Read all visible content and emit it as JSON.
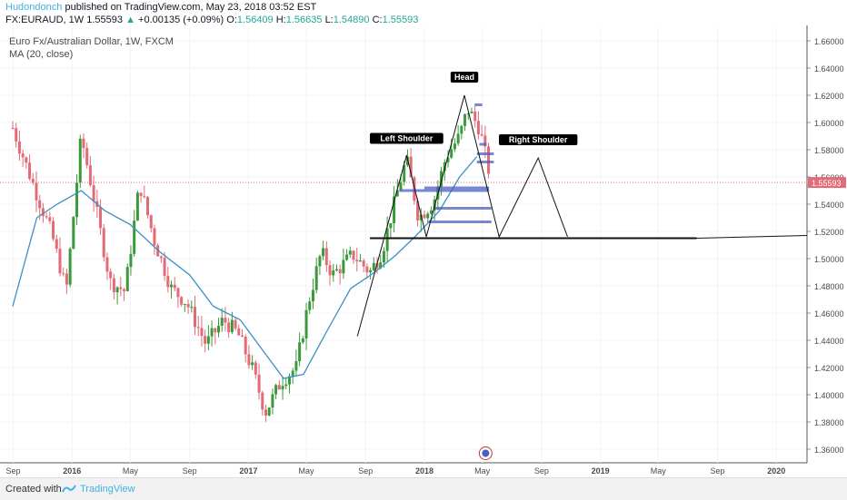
{
  "header": {
    "author": "Hudondonch",
    "published": "published on TradingView.com, May 23, 2018 03:52 EST",
    "symbol": "FX:EURAUD, 1W",
    "price": "1.55593",
    "change": "+0.00135 (+0.09%)",
    "o_label": "O:",
    "o_value": "1.56409",
    "h_label": "H:",
    "h_value": "1.56635",
    "l_label": "L:",
    "l_value": "1.54890",
    "c_label": "C:",
    "c_value": "1.55593"
  },
  "chart_title": "Euro Fx/Australian Dollar, 1W, FXCM",
  "ma_label": "MA (20, close)",
  "footer": {
    "created": "Created with",
    "brand": "TradingView"
  },
  "colors": {
    "up": "#26a69a",
    "bar_up": "#3a9a3a",
    "bar_down": "#e36b78",
    "ma": "#3b8fc4",
    "pattern": "#111111",
    "level": "#4a5fc1",
    "label_bg": "#000000",
    "price_line": "#e36b78"
  },
  "chart_data": {
    "type": "candlestick",
    "title": "Euro Fx/Australian Dollar, 1W, FXCM",
    "ylim": [
      1.35,
      1.67
    ],
    "yticks": [
      "1.66000",
      "1.64000",
      "1.62000",
      "1.60000",
      "1.58000",
      "1.56000",
      "1.54000",
      "1.52000",
      "1.50000",
      "1.48000",
      "1.46000",
      "1.44000",
      "1.42000",
      "1.40000",
      "1.38000",
      "1.36000"
    ],
    "xticks": [
      "Sep",
      "2016",
      "May",
      "Sep",
      "2017",
      "May",
      "Sep",
      "2018",
      "May",
      "Sep",
      "2019",
      "May",
      "Sep",
      "2020"
    ],
    "last_price": "1.55593",
    "close_path": [
      {
        "d": "2015-08-31",
        "c": 1.596
      },
      {
        "d": "2015-10-15",
        "c": 1.552
      },
      {
        "d": "2015-11-20",
        "c": 1.518
      },
      {
        "d": "2015-12-20",
        "c": 1.476
      },
      {
        "d": "2016-01-20",
        "c": 1.59
      },
      {
        "d": "2016-02-15",
        "c": 1.545
      },
      {
        "d": "2016-03-20",
        "c": 1.483
      },
      {
        "d": "2016-04-20",
        "c": 1.476
      },
      {
        "d": "2016-05-20",
        "c": 1.555
      },
      {
        "d": "2016-06-20",
        "c": 1.513
      },
      {
        "d": "2016-07-25",
        "c": 1.478
      },
      {
        "d": "2016-08-25",
        "c": 1.468
      },
      {
        "d": "2016-10-05",
        "c": 1.437
      },
      {
        "d": "2016-11-10",
        "c": 1.455
      },
      {
        "d": "2016-12-10",
        "c": 1.445
      },
      {
        "d": "2017-01-10",
        "c": 1.418
      },
      {
        "d": "2017-02-05",
        "c": 1.387
      },
      {
        "d": "2017-03-10",
        "c": 1.41
      },
      {
        "d": "2017-04-10",
        "c": 1.42
      },
      {
        "d": "2017-05-05",
        "c": 1.467
      },
      {
        "d": "2017-06-01",
        "c": 1.505
      },
      {
        "d": "2017-06-25",
        "c": 1.488
      },
      {
        "d": "2017-08-05",
        "c": 1.503
      },
      {
        "d": "2017-09-10",
        "c": 1.49
      },
      {
        "d": "2017-10-05",
        "c": 1.505
      },
      {
        "d": "2017-11-10",
        "c": 1.555
      },
      {
        "d": "2017-11-25",
        "c": 1.573
      },
      {
        "d": "2017-12-20",
        "c": 1.53
      },
      {
        "d": "2018-01-20",
        "c": 1.542
      },
      {
        "d": "2018-02-15",
        "c": 1.575
      },
      {
        "d": "2018-03-15",
        "c": 1.59
      },
      {
        "d": "2018-04-01",
        "c": 1.61
      },
      {
        "d": "2018-04-25",
        "c": 1.596
      },
      {
        "d": "2018-05-20",
        "c": 1.556
      }
    ],
    "ma20": [
      {
        "d": "2015-08-31",
        "v": 1.465
      },
      {
        "d": "2015-10-20",
        "v": 1.53
      },
      {
        "d": "2015-12-01",
        "v": 1.54
      },
      {
        "d": "2016-01-20",
        "v": 1.55
      },
      {
        "d": "2016-03-10",
        "v": 1.535
      },
      {
        "d": "2016-05-01",
        "v": 1.525
      },
      {
        "d": "2016-07-01",
        "v": 1.505
      },
      {
        "d": "2016-09-01",
        "v": 1.488
      },
      {
        "d": "2016-10-20",
        "v": 1.465
      },
      {
        "d": "2016-12-15",
        "v": 1.455
      },
      {
        "d": "2017-02-01",
        "v": 1.432
      },
      {
        "d": "2017-03-15",
        "v": 1.412
      },
      {
        "d": "2017-04-25",
        "v": 1.415
      },
      {
        "d": "2017-06-10",
        "v": 1.445
      },
      {
        "d": "2017-08-01",
        "v": 1.478
      },
      {
        "d": "2017-09-20",
        "v": 1.49
      },
      {
        "d": "2017-11-01",
        "v": 1.502
      },
      {
        "d": "2017-12-15",
        "v": 1.517
      },
      {
        "d": "2018-02-01",
        "v": 1.535
      },
      {
        "d": "2018-03-15",
        "v": 1.56
      },
      {
        "d": "2018-04-20",
        "v": 1.575
      }
    ],
    "annotations": {
      "head": "Head",
      "left_shoulder": "Left Shoulder",
      "right_shoulder": "Right Shoulder",
      "neckline": 1.515,
      "pattern_points": [
        {
          "d": "2017-08-15",
          "v": 1.443
        },
        {
          "d": "2017-11-25",
          "v": 1.576
        },
        {
          "d": "2018-01-05",
          "v": 1.516
        },
        {
          "d": "2018-03-25",
          "v": 1.62
        },
        {
          "d": "2018-06-05",
          "v": 1.516
        },
        {
          "d": "2018-08-25",
          "v": 1.574
        },
        {
          "d": "2018-10-25",
          "v": 1.516
        }
      ],
      "levels": [
        {
          "from": "2018-04-15",
          "to": "2018-05-01",
          "v": 1.613
        },
        {
          "from": "2018-04-25",
          "to": "2018-05-10",
          "v": 1.584
        },
        {
          "from": "2018-04-20",
          "to": "2018-05-25",
          "v": 1.577
        },
        {
          "from": "2018-04-20",
          "to": "2018-05-25",
          "v": 1.571
        },
        {
          "from": "2018-01-01",
          "to": "2018-05-15",
          "v": 1.552
        },
        {
          "from": "2017-11-10",
          "to": "2018-05-15",
          "v": 1.55
        },
        {
          "from": "2018-01-20",
          "to": "2018-05-20",
          "v": 1.537
        },
        {
          "from": "2018-01-10",
          "to": "2018-05-20",
          "v": 1.527
        }
      ]
    }
  }
}
